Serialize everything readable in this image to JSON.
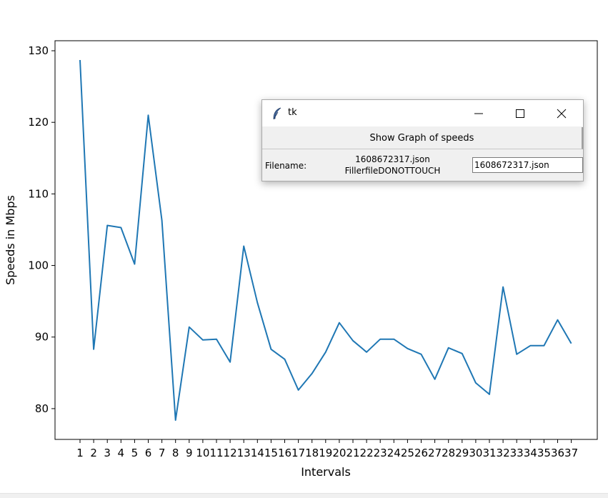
{
  "window": {
    "title": "tk",
    "icon": "feather-icon",
    "controls": [
      "minimize-icon",
      "maximize-icon",
      "close-icon"
    ]
  },
  "controls": {
    "show_graph_label": "Show Graph of speeds",
    "filename_label": "Filename:",
    "files": [
      "1608672317.json",
      "FillerfileDONOTTOUCH"
    ],
    "filename_value": "1608672317.json"
  },
  "colors": {
    "line": "#1f77b4"
  },
  "chart_data": {
    "type": "line",
    "title": "",
    "xlabel": "Intervals",
    "ylabel": "Speeds in Mbps",
    "categories": [
      "1",
      "2",
      "3",
      "4",
      "5",
      "6",
      "7",
      "8",
      "9",
      "10",
      "11",
      "12",
      "13",
      "14",
      "15",
      "16",
      "17",
      "18",
      "19",
      "20",
      "21",
      "22",
      "23",
      "24",
      "25",
      "26",
      "27",
      "28",
      "29",
      "30",
      "31",
      "32",
      "33",
      "34",
      "35",
      "36",
      "37"
    ],
    "values": [
      128.7,
      88.3,
      105.6,
      105.3,
      100.2,
      121.0,
      106.3,
      78.4,
      91.4,
      89.6,
      89.7,
      86.5,
      102.7,
      94.8,
      88.3,
      86.9,
      82.6,
      84.9,
      87.9,
      92.0,
      89.5,
      87.9,
      89.7,
      89.7,
      88.4,
      87.6,
      84.1,
      88.5,
      87.7,
      83.6,
      82.0,
      97.0,
      87.6,
      88.8,
      88.8,
      92.4,
      89.1
    ],
    "yticks": [
      80,
      90,
      100,
      110,
      120,
      130
    ],
    "ylim": [
      75.7,
      131.4
    ],
    "grid": false,
    "legend": false
  }
}
